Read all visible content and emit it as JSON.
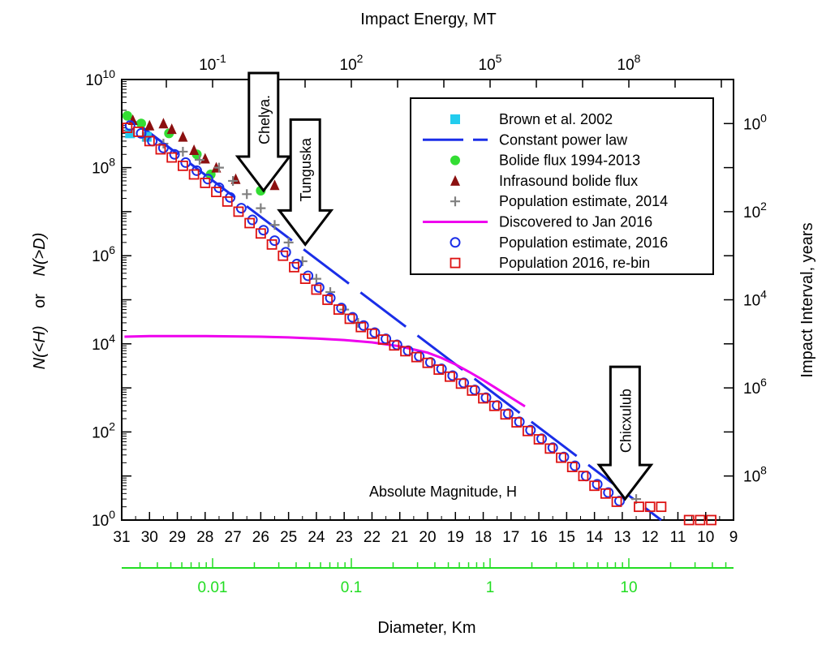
{
  "chart_data": {
    "type": "scatter",
    "top_axis": {
      "label": "Impact Energy, MT",
      "scale": "log",
      "ticks": [
        {
          "base": "10",
          "exp": "-1",
          "value": 0.1
        },
        {
          "base": "10",
          "exp": "2",
          "value": 100
        },
        {
          "base": "10",
          "exp": "5",
          "value": 100000
        },
        {
          "base": "10",
          "exp": "8",
          "value": 100000000
        }
      ]
    },
    "left_axis": {
      "label_parts": [
        "N(<H)",
        "or",
        "N(>D)"
      ],
      "scale": "log",
      "ylim": [
        1,
        10000000000
      ],
      "ticks": [
        {
          "base": "10",
          "exp": "0",
          "value": 1
        },
        {
          "base": "10",
          "exp": "2",
          "value": 100
        },
        {
          "base": "10",
          "exp": "4",
          "value": 10000
        },
        {
          "base": "10",
          "exp": "6",
          "value": 1000000
        },
        {
          "base": "10",
          "exp": "8",
          "value": 100000000
        },
        {
          "base": "10",
          "exp": "10",
          "value": 10000000000
        }
      ]
    },
    "right_axis": {
      "label": "Impact Interval, years",
      "scale": "log",
      "ticks": [
        {
          "base": "10",
          "exp": "0",
          "value": 1
        },
        {
          "base": "10",
          "exp": "2",
          "value": 100
        },
        {
          "base": "10",
          "exp": "4",
          "value": 10000
        },
        {
          "base": "10",
          "exp": "6",
          "value": 1000000
        },
        {
          "base": "10",
          "exp": "8",
          "value": 100000000
        }
      ]
    },
    "bottom_axis": {
      "label": "Absolute Magnitude, H",
      "xlim": [
        31,
        9
      ],
      "ticks": [
        "31",
        "30",
        "29",
        "28",
        "27",
        "26",
        "25",
        "24",
        "23",
        "22",
        "21",
        "20",
        "19",
        "18",
        "17",
        "16",
        "15",
        "14",
        "13",
        "12",
        "11",
        "10",
        "9"
      ]
    },
    "diameter_axis": {
      "label": "Diameter, Km",
      "scale": "log",
      "ticks": [
        {
          "label": "0.01",
          "value": 0.01
        },
        {
          "label": "0.1",
          "value": 0.1
        },
        {
          "label": "1",
          "value": 1
        },
        {
          "label": "10",
          "value": 10
        }
      ],
      "color": "#22dd22"
    },
    "legend_position": "top-right",
    "series": [
      {
        "name": "Brown et al. 2002",
        "marker": "square",
        "color": "#22ccee",
        "points": [
          [
            30.7,
            600000000
          ],
          [
            30.1,
            500000000
          ]
        ]
      },
      {
        "name": "Constant power law",
        "marker": "dashed-line",
        "color": "#1a2ee8",
        "x": [
          30.6,
          11.6
        ],
        "y": [
          1200000000,
          1
        ]
      },
      {
        "name": "Bolide flux 1994-2013",
        "marker": "circle",
        "color": "#33dd33",
        "points": [
          [
            30.8,
            1500000000
          ],
          [
            30.3,
            1000000000
          ],
          [
            29.3,
            600000000
          ],
          [
            28.3,
            200000000
          ],
          [
            27.8,
            70000000
          ],
          [
            26.0,
            30000000
          ]
        ]
      },
      {
        "name": "Infrasound bolide flux",
        "marker": "triangle",
        "color": "#8b1010",
        "points": [
          [
            30.6,
            1200000000
          ],
          [
            30.0,
            900000000
          ],
          [
            29.5,
            1000000000
          ],
          [
            29.2,
            750000000
          ],
          [
            28.8,
            500000000
          ],
          [
            28.4,
            250000000
          ],
          [
            28.0,
            160000000
          ],
          [
            27.6,
            100000000
          ],
          [
            26.9,
            55000000
          ],
          [
            25.5,
            40000000
          ]
        ]
      },
      {
        "name": "Population estimate, 2014",
        "marker": "plus",
        "color": "#808080",
        "points": [
          [
            30.2,
            500000000
          ],
          [
            29.5,
            350000000
          ],
          [
            28.8,
            230000000
          ],
          [
            28.2,
            150000000
          ],
          [
            27.5,
            100000000
          ],
          [
            27.0,
            50000000
          ],
          [
            26.5,
            25000000
          ],
          [
            26.0,
            12000000
          ],
          [
            25.5,
            5000000
          ],
          [
            25.0,
            2000000
          ],
          [
            24.5,
            750000
          ],
          [
            24.0,
            300000
          ],
          [
            23.5,
            150000
          ],
          [
            23.0,
            60000
          ],
          [
            22.5,
            30000
          ],
          [
            12.5,
            3
          ]
        ]
      },
      {
        "name": "Discovered to Jan 2016",
        "marker": "solid-line",
        "color": "#ee00ee",
        "x": [
          30.9,
          30.0,
          29.0,
          28.0,
          27.0,
          26.0,
          25.0,
          24.0,
          23.0,
          22.0,
          21.0,
          20.0,
          19.5,
          19.0,
          18.5,
          18.0,
          17.5,
          17.0,
          16.5
        ],
        "y": [
          14500,
          15000,
          15000,
          15000,
          14800,
          14500,
          14000,
          13200,
          12200,
          10800,
          8800,
          6300,
          4800,
          3400,
          2300,
          1500,
          950,
          600,
          380
        ]
      },
      {
        "name": "Population estimate, 2016",
        "marker": "open-circle",
        "color": "#1a2ee8",
        "points": [
          [
            30.7,
            900000000
          ],
          [
            30.3,
            600000000
          ],
          [
            29.9,
            400000000
          ],
          [
            29.5,
            280000000
          ],
          [
            29.1,
            200000000
          ],
          [
            28.7,
            130000000
          ],
          [
            28.3,
            85000000
          ],
          [
            27.9,
            55000000
          ],
          [
            27.5,
            35000000
          ],
          [
            27.1,
            21000000
          ],
          [
            26.7,
            12000000
          ],
          [
            26.3,
            6500000
          ],
          [
            25.9,
            3800000
          ],
          [
            25.5,
            2200000
          ],
          [
            25.1,
            1200000
          ],
          [
            24.7,
            650000
          ],
          [
            24.3,
            350000
          ],
          [
            23.9,
            190000
          ],
          [
            23.5,
            110000
          ],
          [
            23.1,
            65000
          ],
          [
            22.7,
            40000
          ],
          [
            22.3,
            26000
          ],
          [
            21.9,
            18000
          ],
          [
            21.5,
            13000
          ],
          [
            21.1,
            9500
          ],
          [
            20.7,
            7000
          ],
          [
            20.3,
            5200
          ],
          [
            19.9,
            3800
          ],
          [
            19.5,
            2700
          ],
          [
            19.1,
            1900
          ],
          [
            18.7,
            1300
          ],
          [
            18.3,
            900
          ],
          [
            17.9,
            600
          ],
          [
            17.5,
            400
          ],
          [
            17.1,
            260
          ],
          [
            16.7,
            170
          ],
          [
            16.3,
            110
          ],
          [
            15.9,
            70
          ],
          [
            15.5,
            44
          ],
          [
            15.1,
            27
          ],
          [
            14.7,
            17
          ],
          [
            14.3,
            10
          ],
          [
            13.9,
            6.5
          ],
          [
            13.5,
            4.2
          ],
          [
            13.1,
            2.7
          ]
        ]
      },
      {
        "name": "Population 2016, re-bin",
        "marker": "open-square",
        "color": "#dd1111",
        "points": [
          [
            30.8,
            800000000
          ],
          [
            30.4,
            650000000
          ],
          [
            30.0,
            400000000
          ],
          [
            29.6,
            260000000
          ],
          [
            29.2,
            170000000
          ],
          [
            28.8,
            110000000
          ],
          [
            28.4,
            70000000
          ],
          [
            28.0,
            45000000
          ],
          [
            27.6,
            28000000
          ],
          [
            27.2,
            17000000
          ],
          [
            26.8,
            10000000
          ],
          [
            26.4,
            5500000
          ],
          [
            26.0,
            3200000
          ],
          [
            25.6,
            1800000
          ],
          [
            25.2,
            1000000
          ],
          [
            24.8,
            550000
          ],
          [
            24.4,
            300000
          ],
          [
            24.0,
            170000
          ],
          [
            23.6,
            100000
          ],
          [
            23.2,
            60000
          ],
          [
            22.8,
            37000
          ],
          [
            22.4,
            24000
          ],
          [
            22.0,
            17000
          ],
          [
            21.6,
            12500
          ],
          [
            21.2,
            9200
          ],
          [
            20.8,
            6800
          ],
          [
            20.4,
            5000
          ],
          [
            20.0,
            3700
          ],
          [
            19.6,
            2600
          ],
          [
            19.2,
            1800
          ],
          [
            18.8,
            1250
          ],
          [
            18.4,
            870
          ],
          [
            18.0,
            580
          ],
          [
            17.6,
            390
          ],
          [
            17.2,
            250
          ],
          [
            16.8,
            165
          ],
          [
            16.4,
            105
          ],
          [
            16.0,
            68
          ],
          [
            15.6,
            42
          ],
          [
            15.2,
            26
          ],
          [
            14.8,
            16
          ],
          [
            14.4,
            10
          ],
          [
            14.0,
            6
          ],
          [
            13.6,
            4
          ],
          [
            13.2,
            2.6
          ],
          [
            12.4,
            2
          ],
          [
            12.0,
            2
          ],
          [
            11.6,
            2
          ],
          [
            10.6,
            1
          ],
          [
            10.2,
            1
          ],
          [
            9.8,
            1
          ]
        ]
      }
    ],
    "annotations": [
      {
        "text": "Chelya.",
        "kind": "arrow",
        "x": 25.9,
        "tip_y": 30000000
      },
      {
        "text": "Tunguska",
        "kind": "arrow",
        "x": 24.4,
        "tip_y": 1800000
      },
      {
        "text": "Chicxulub",
        "kind": "arrow",
        "x": 12.9,
        "tip_y": 3
      }
    ],
    "style": {
      "axis_color": "#000000",
      "background": "#ffffff"
    }
  }
}
